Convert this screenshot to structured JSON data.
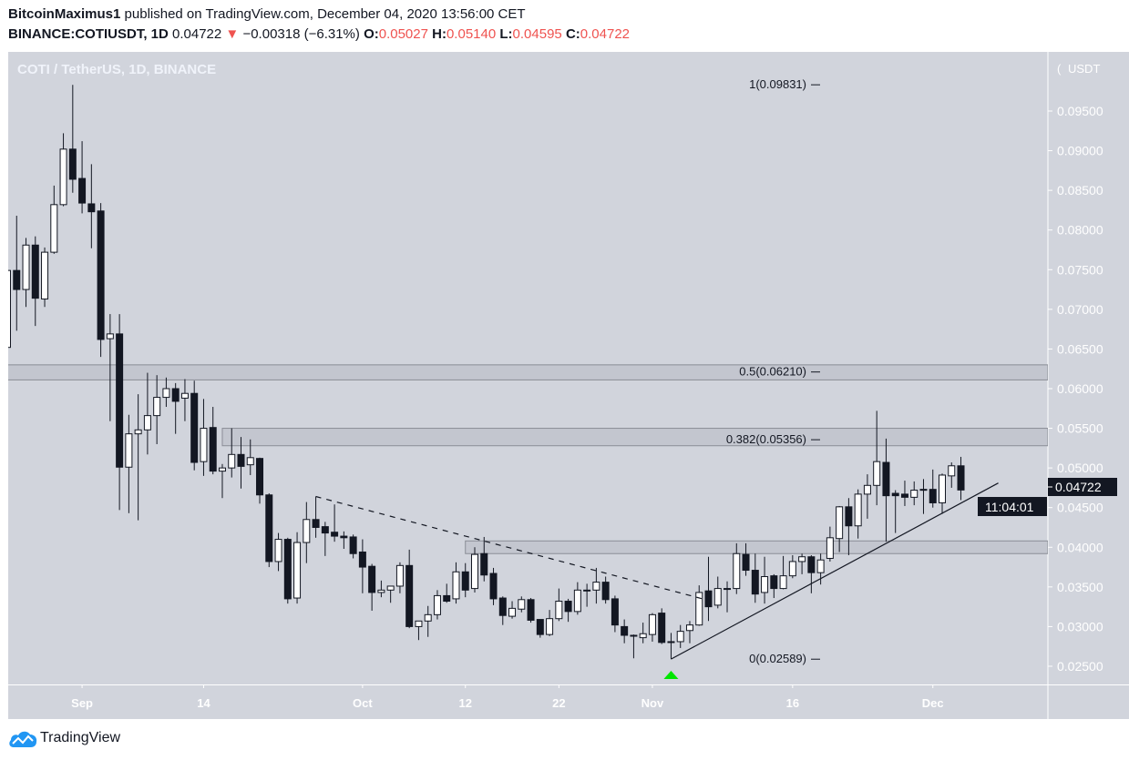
{
  "header": {
    "author": "BitcoinMaximus1",
    "published": "published on TradingView.com, December 04, 2020 13:56:00 CET",
    "symbol": "BINANCE:COTIUSDT, 1D",
    "last": "0.04722",
    "change_arrow": "down-triangle-icon",
    "change": "−0.00318 (−6.31%)",
    "o_label": "O:",
    "o": "0.05027",
    "h_label": "H:",
    "h": "0.05140",
    "l_label": "L:",
    "l": "0.04595",
    "c_label": "C:",
    "c": "0.04722"
  },
  "colors": {
    "background": "#d1d4dc",
    "up_body": "#ffffff",
    "down_body": "#131722",
    "negative": "#ef5350",
    "marker": "#00e600",
    "zone": "#c3c6cf"
  },
  "chart_data": {
    "type": "candlestick",
    "title": "COTI / TetherUS, 1D, BINANCE",
    "currency_label": "USDT",
    "ylim": [
      0.0215,
      0.1015
    ],
    "grid": false,
    "y_ticks": [
      "0.02500",
      "0.03000",
      "0.03500",
      "0.04000",
      "0.04500",
      "0.05000",
      "0.05500",
      "0.06000",
      "0.06500",
      "0.07000",
      "0.07500",
      "0.08000",
      "0.08500",
      "0.09000",
      "0.09500"
    ],
    "x_ticks": [
      {
        "label": "Sep",
        "date": "2020-09-01"
      },
      {
        "label": "14",
        "date": "2020-09-14"
      },
      {
        "label": "Oct",
        "date": "2020-10-01"
      },
      {
        "label": "12",
        "date": "2020-10-12"
      },
      {
        "label": "22",
        "date": "2020-10-22"
      },
      {
        "label": "Nov",
        "date": "2020-11-01"
      },
      {
        "label": "16",
        "date": "2020-11-16"
      },
      {
        "label": "Dec",
        "date": "2020-12-01"
      }
    ],
    "last_price_label": "0.04722",
    "countdown": "11:04:01",
    "candles_fields": [
      "date",
      "open",
      "high",
      "low",
      "close"
    ],
    "candles": [
      [
        "2020-08-24",
        0.0652,
        0.0752,
        0.065,
        0.0749
      ],
      [
        "2020-08-25",
        0.0749,
        0.0818,
        0.0673,
        0.0725
      ],
      [
        "2020-08-26",
        0.0725,
        0.079,
        0.0703,
        0.0781
      ],
      [
        "2020-08-27",
        0.0781,
        0.0792,
        0.0679,
        0.0714
      ],
      [
        "2020-08-28",
        0.0713,
        0.0778,
        0.0703,
        0.0772
      ],
      [
        "2020-08-29",
        0.0772,
        0.0856,
        0.077,
        0.0832
      ],
      [
        "2020-08-30",
        0.0832,
        0.0922,
        0.083,
        0.0902
      ],
      [
        "2020-08-31",
        0.0902,
        0.0983,
        0.0847,
        0.0864
      ],
      [
        "2020-09-01",
        0.0865,
        0.0912,
        0.0821,
        0.0834
      ],
      [
        "2020-09-02",
        0.0833,
        0.0883,
        0.0777,
        0.0823
      ],
      [
        "2020-09-03",
        0.0824,
        0.0834,
        0.064,
        0.0662
      ],
      [
        "2020-09-04",
        0.0663,
        0.0694,
        0.0559,
        0.0669
      ],
      [
        "2020-09-05",
        0.0669,
        0.0694,
        0.0447,
        0.0501
      ],
      [
        "2020-09-06",
        0.0501,
        0.0567,
        0.0443,
        0.0543
      ],
      [
        "2020-09-07",
        0.0543,
        0.0593,
        0.0434,
        0.0548
      ],
      [
        "2020-09-08",
        0.0548,
        0.062,
        0.0517,
        0.0566
      ],
      [
        "2020-09-09",
        0.0566,
        0.0617,
        0.053,
        0.0589
      ],
      [
        "2020-09-10",
        0.0589,
        0.0614,
        0.0577,
        0.06
      ],
      [
        "2020-09-11",
        0.06,
        0.0607,
        0.0543,
        0.0584
      ],
      [
        "2020-09-12",
        0.0588,
        0.0612,
        0.0559,
        0.0594
      ],
      [
        "2020-09-13",
        0.0594,
        0.061,
        0.0497,
        0.0507
      ],
      [
        "2020-09-14",
        0.0508,
        0.0587,
        0.049,
        0.055
      ],
      [
        "2020-09-15",
        0.0551,
        0.0577,
        0.0492,
        0.0496
      ],
      [
        "2020-09-16",
        0.0496,
        0.0505,
        0.0462,
        0.05
      ],
      [
        "2020-09-17",
        0.05,
        0.055,
        0.0488,
        0.0517
      ],
      [
        "2020-09-18",
        0.0517,
        0.0539,
        0.0474,
        0.0502
      ],
      [
        "2020-09-19",
        0.0504,
        0.0536,
        0.0491,
        0.0513
      ],
      [
        "2020-09-20",
        0.0512,
        0.0513,
        0.0455,
        0.0466
      ],
      [
        "2020-09-21",
        0.0466,
        0.0468,
        0.0375,
        0.0382
      ],
      [
        "2020-09-22",
        0.0382,
        0.0418,
        0.037,
        0.041
      ],
      [
        "2020-09-23",
        0.041,
        0.0412,
        0.0329,
        0.0335
      ],
      [
        "2020-09-24",
        0.0336,
        0.0419,
        0.0329,
        0.0406
      ],
      [
        "2020-09-25",
        0.0406,
        0.0457,
        0.038,
        0.0435
      ],
      [
        "2020-09-26",
        0.0435,
        0.0464,
        0.0412,
        0.0425
      ],
      [
        "2020-09-27",
        0.0426,
        0.0432,
        0.0389,
        0.0418
      ],
      [
        "2020-09-28",
        0.0419,
        0.0454,
        0.0407,
        0.0414
      ],
      [
        "2020-09-29",
        0.0414,
        0.042,
        0.0398,
        0.0412
      ],
      [
        "2020-09-30",
        0.0413,
        0.0416,
        0.0386,
        0.0392
      ],
      [
        "2020-10-01",
        0.0394,
        0.041,
        0.0342,
        0.0375
      ],
      [
        "2020-10-02",
        0.0376,
        0.0379,
        0.032,
        0.0343
      ],
      [
        "2020-10-03",
        0.0343,
        0.0358,
        0.0337,
        0.0346
      ],
      [
        "2020-10-04",
        0.0346,
        0.0351,
        0.033,
        0.0351
      ],
      [
        "2020-10-05",
        0.0351,
        0.0381,
        0.0342,
        0.0377
      ],
      [
        "2020-10-06",
        0.0377,
        0.0397,
        0.0298,
        0.03
      ],
      [
        "2020-10-07",
        0.03,
        0.0307,
        0.0283,
        0.0307
      ],
      [
        "2020-10-08",
        0.0307,
        0.0326,
        0.0287,
        0.0315
      ],
      [
        "2020-10-09",
        0.0315,
        0.0346,
        0.0309,
        0.0339
      ],
      [
        "2020-10-10",
        0.0339,
        0.0354,
        0.033,
        0.0332
      ],
      [
        "2020-10-11",
        0.0335,
        0.0381,
        0.0329,
        0.0369
      ],
      [
        "2020-10-12",
        0.0369,
        0.038,
        0.0337,
        0.0346
      ],
      [
        "2020-10-13",
        0.0348,
        0.04,
        0.0343,
        0.0391
      ],
      [
        "2020-10-14",
        0.0392,
        0.0413,
        0.0357,
        0.0365
      ],
      [
        "2020-10-15",
        0.0367,
        0.0374,
        0.0327,
        0.0335
      ],
      [
        "2020-10-16",
        0.0336,
        0.0338,
        0.0302,
        0.0314
      ],
      [
        "2020-10-17",
        0.0313,
        0.0332,
        0.031,
        0.0323
      ],
      [
        "2020-10-18",
        0.0322,
        0.0338,
        0.0318,
        0.0334
      ],
      [
        "2020-10-19",
        0.0334,
        0.0336,
        0.0305,
        0.0308
      ],
      [
        "2020-10-20",
        0.0309,
        0.0309,
        0.0286,
        0.029
      ],
      [
        "2020-10-21",
        0.029,
        0.0321,
        0.0288,
        0.031
      ],
      [
        "2020-10-22",
        0.031,
        0.0348,
        0.0307,
        0.0332
      ],
      [
        "2020-10-23",
        0.0332,
        0.0335,
        0.0306,
        0.0319
      ],
      [
        "2020-10-24",
        0.0319,
        0.0356,
        0.0315,
        0.0346
      ],
      [
        "2020-10-25",
        0.0346,
        0.0354,
        0.0325,
        0.0345
      ],
      [
        "2020-10-26",
        0.0346,
        0.0374,
        0.0329,
        0.0356
      ],
      [
        "2020-10-27",
        0.0356,
        0.0363,
        0.0329,
        0.0334
      ],
      [
        "2020-10-28",
        0.0335,
        0.0339,
        0.0293,
        0.0302
      ],
      [
        "2020-10-29",
        0.03,
        0.0309,
        0.0279,
        0.0289
      ],
      [
        "2020-10-30",
        0.0289,
        0.029,
        0.026,
        0.0288
      ],
      [
        "2020-10-31",
        0.0286,
        0.0305,
        0.0279,
        0.0291
      ],
      [
        "2020-11-01",
        0.029,
        0.0317,
        0.0281,
        0.0315
      ],
      [
        "2020-11-02",
        0.0317,
        0.0323,
        0.0278,
        0.028
      ],
      [
        "2020-11-03",
        0.0281,
        0.0292,
        0.0259,
        0.028
      ],
      [
        "2020-11-04",
        0.0281,
        0.0302,
        0.0273,
        0.0294
      ],
      [
        "2020-11-05",
        0.0295,
        0.0307,
        0.0279,
        0.0302
      ],
      [
        "2020-11-06",
        0.0302,
        0.0352,
        0.0301,
        0.0343
      ],
      [
        "2020-11-07",
        0.0345,
        0.0388,
        0.0307,
        0.0325
      ],
      [
        "2020-11-08",
        0.0327,
        0.0363,
        0.0323,
        0.0348
      ],
      [
        "2020-11-09",
        0.0348,
        0.0357,
        0.0318,
        0.0347
      ],
      [
        "2020-11-10",
        0.0348,
        0.0405,
        0.0341,
        0.0392
      ],
      [
        "2020-11-11",
        0.0391,
        0.0405,
        0.0364,
        0.0371
      ],
      [
        "2020-11-12",
        0.0371,
        0.0392,
        0.033,
        0.0341
      ],
      [
        "2020-11-13",
        0.0343,
        0.0388,
        0.0329,
        0.0363
      ],
      [
        "2020-11-14",
        0.0364,
        0.0366,
        0.0336,
        0.0348
      ],
      [
        "2020-11-15",
        0.0348,
        0.0389,
        0.0347,
        0.0364
      ],
      [
        "2020-11-16",
        0.0364,
        0.039,
        0.0361,
        0.0382
      ],
      [
        "2020-11-17",
        0.0382,
        0.0392,
        0.0366,
        0.0388
      ],
      [
        "2020-11-18",
        0.0388,
        0.039,
        0.0342,
        0.0368
      ],
      [
        "2020-11-19",
        0.0368,
        0.0392,
        0.0353,
        0.0384
      ],
      [
        "2020-11-20",
        0.0386,
        0.0426,
        0.0382,
        0.0412
      ],
      [
        "2020-11-21",
        0.0411,
        0.0452,
        0.0394,
        0.0451
      ],
      [
        "2020-11-22",
        0.0451,
        0.0462,
        0.039,
        0.0427
      ],
      [
        "2020-11-23",
        0.0427,
        0.0473,
        0.0411,
        0.0467
      ],
      [
        "2020-11-24",
        0.0467,
        0.0492,
        0.0436,
        0.0478
      ],
      [
        "2020-11-25",
        0.0478,
        0.0572,
        0.0453,
        0.0508
      ],
      [
        "2020-11-26",
        0.0507,
        0.0537,
        0.0407,
        0.0465
      ],
      [
        "2020-11-27",
        0.0468,
        0.0472,
        0.0418,
        0.0465
      ],
      [
        "2020-11-28",
        0.0467,
        0.0484,
        0.0452,
        0.0463
      ],
      [
        "2020-11-29",
        0.0463,
        0.0483,
        0.0453,
        0.0472
      ],
      [
        "2020-11-30",
        0.0472,
        0.0486,
        0.0442,
        0.0473
      ],
      [
        "2020-12-01",
        0.0473,
        0.0498,
        0.045,
        0.0456
      ],
      [
        "2020-12-02",
        0.0456,
        0.0493,
        0.0442,
        0.0491
      ],
      [
        "2020-12-03",
        0.049,
        0.0507,
        0.0475,
        0.05027
      ],
      [
        "2020-12-04",
        0.05027,
        0.0514,
        0.04595,
        0.04722
      ]
    ],
    "fib_levels": [
      {
        "label": "1(0.09831)",
        "price": 0.09831
      },
      {
        "label": "0.5(0.06210)",
        "price": 0.0621
      },
      {
        "label": "0.382(0.05356)",
        "price": 0.05356
      },
      {
        "label": "0(0.02589)",
        "price": 0.02589
      }
    ],
    "zones": [
      {
        "from_date": "2020-08-24",
        "top": 0.063,
        "bottom": 0.0611
      },
      {
        "from_date": "2020-09-16",
        "top": 0.055,
        "bottom": 0.0528
      },
      {
        "from_date": "2020-10-12",
        "top": 0.0408,
        "bottom": 0.0392
      }
    ],
    "trendlines": [
      {
        "style": "dashed",
        "start": [
          "2020-09-26",
          0.0464
        ],
        "end": [
          "2020-11-07",
          0.0333
        ]
      },
      {
        "style": "solid",
        "start": [
          "2020-11-03",
          0.0259
        ],
        "end": [
          "2020-12-08",
          0.0481
        ]
      }
    ],
    "markers": [
      {
        "date": "2020-11-03",
        "shape": "up-triangle"
      }
    ]
  },
  "brand": {
    "name": "TradingView",
    "logo_icon": "tradingview-cloud-icon"
  }
}
